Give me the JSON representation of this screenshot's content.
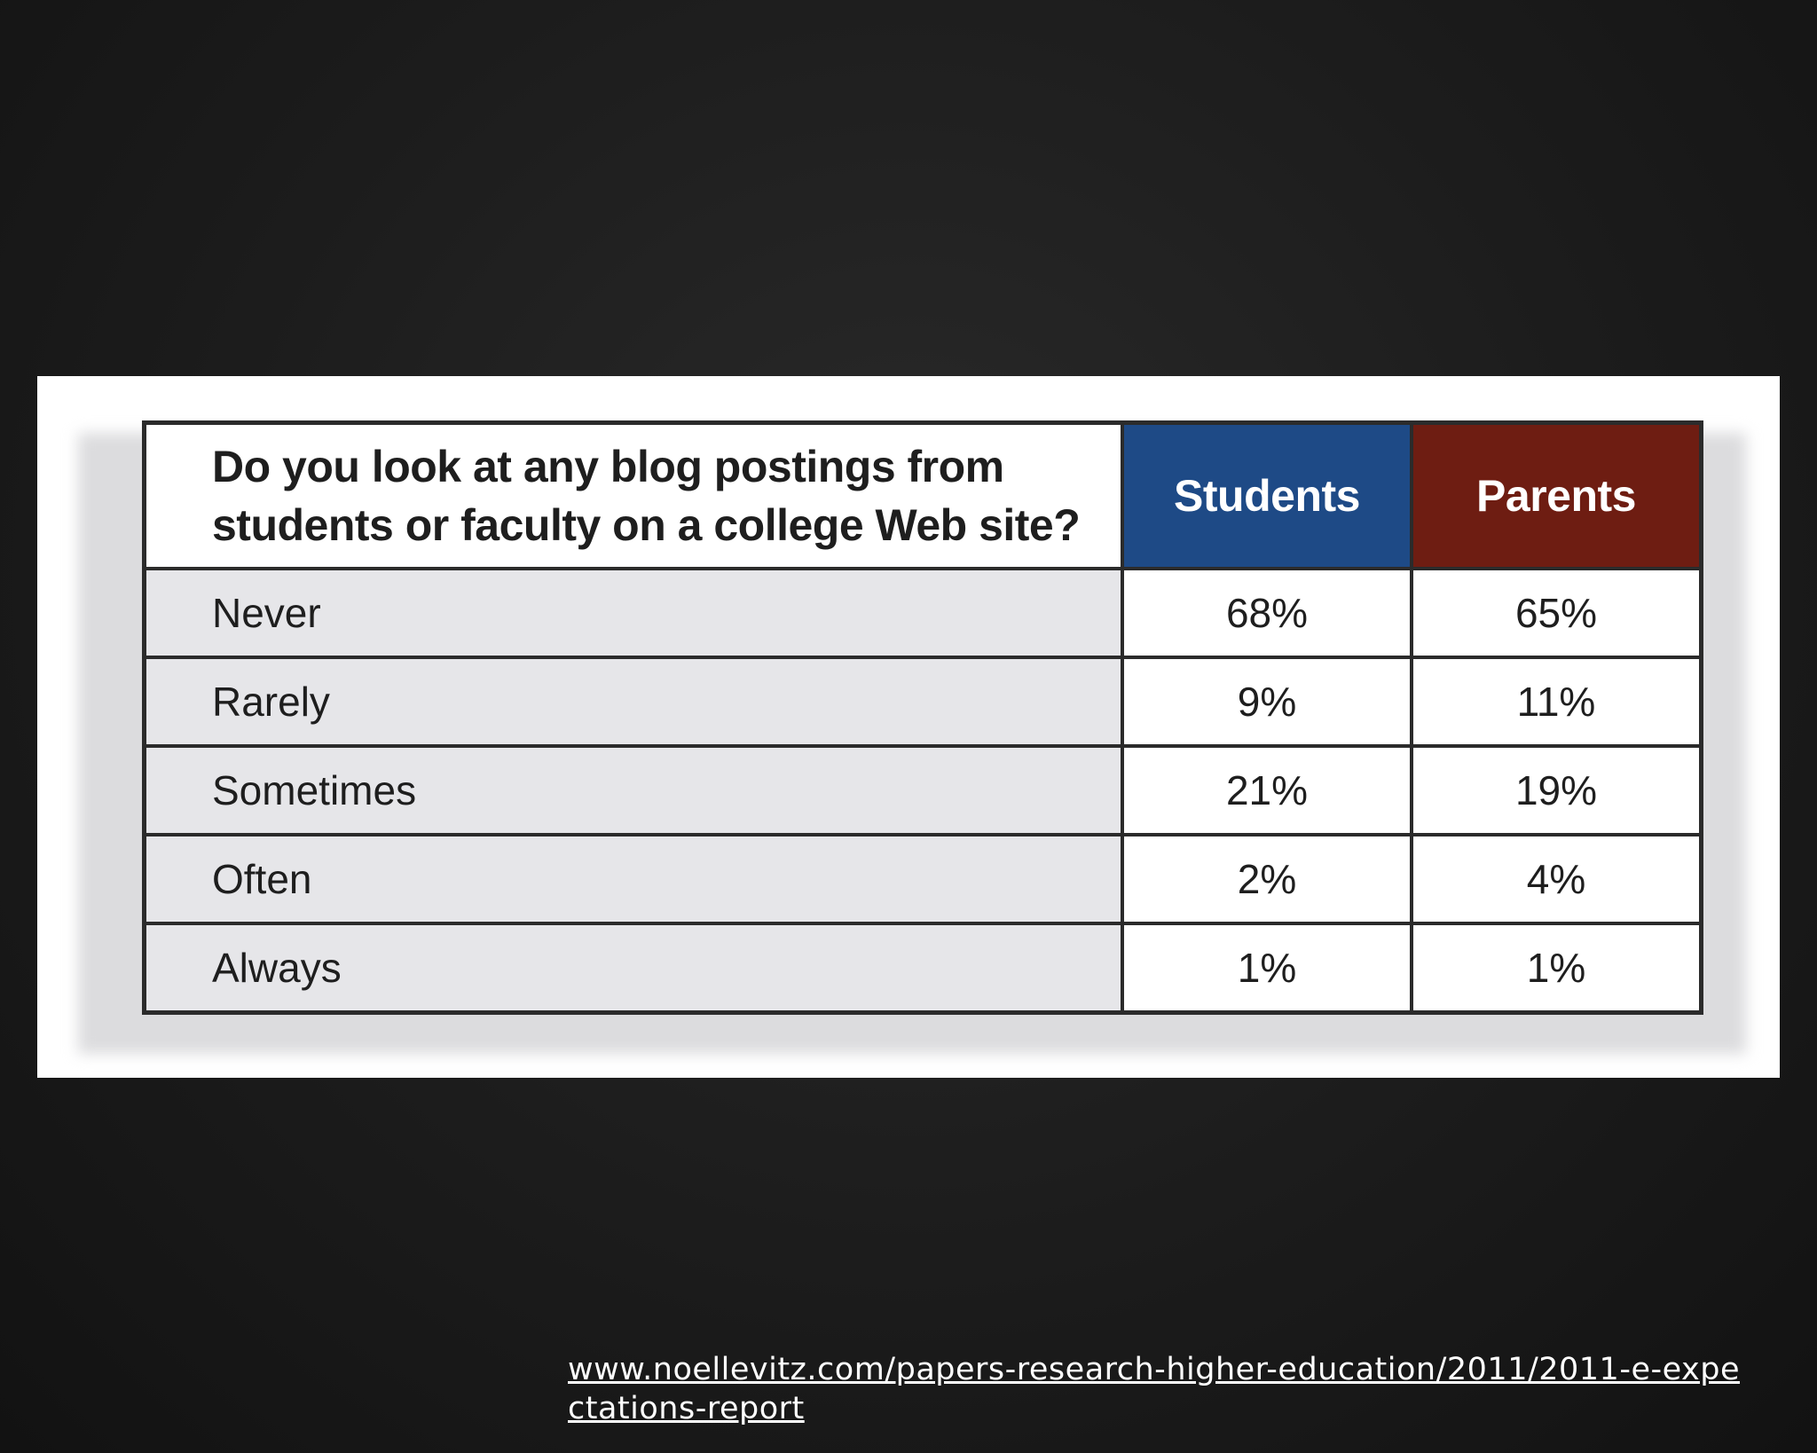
{
  "chart_data": {
    "type": "table",
    "title": "Do you look at any blog postings from students or faculty on a college Web site?",
    "columns": [
      "Students",
      "Parents"
    ],
    "categories": [
      "Never",
      "Rarely",
      "Sometimes",
      "Often",
      "Always"
    ],
    "series": [
      {
        "name": "Students",
        "values": [
          68,
          9,
          21,
          2,
          1
        ]
      },
      {
        "name": "Parents",
        "values": [
          65,
          11,
          19,
          4,
          1
        ]
      }
    ],
    "value_suffix": "%",
    "colors": {
      "Students": "#1e4a86",
      "Parents": "#6e1d12"
    }
  },
  "source": {
    "url_text": "www.noellevitz.com/papers-research-higher-education/2011/2011-e-expectations-report"
  }
}
